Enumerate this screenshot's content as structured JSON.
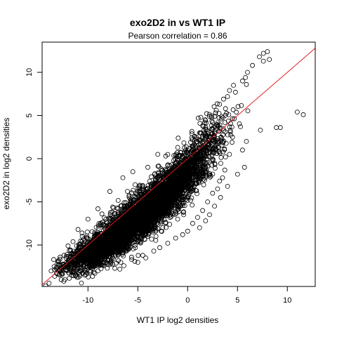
{
  "chart_data": {
    "type": "scatter",
    "title": "exo2D2 in vs WT1 IP",
    "subtitle": "Pearson correlation =  0.86",
    "xlabel": "WT1 IP log2 densities",
    "ylabel": "exo2D2 in log2 densities",
    "xlim": [
      -14.6,
      12.8
    ],
    "ylim": [
      -14.8,
      13.5
    ],
    "xticks": [
      -10,
      -5,
      0,
      5,
      10
    ],
    "xtick_labels": [
      "-10",
      "-5",
      "0",
      "5",
      "10"
    ],
    "yticks": [
      -10,
      -5,
      0,
      5,
      10
    ],
    "ytick_labels": [
      "-10",
      "-5",
      "0",
      "5",
      "10"
    ],
    "grid": false,
    "point_color": "#000000",
    "line_color": "#e31a1c",
    "reference_line": {
      "slope": 1,
      "intercept": 0
    },
    "points": [
      [
        11.0,
        5.4
      ],
      [
        11.6,
        5.1
      ],
      [
        8.9,
        3.6
      ],
      [
        9.3,
        3.6
      ],
      [
        7.3,
        3.3
      ],
      [
        5.9,
        2.0
      ],
      [
        7.6,
        12.2
      ],
      [
        8.0,
        12.4
      ],
      [
        7.2,
        11.8
      ],
      [
        7.6,
        11.3
      ],
      [
        8.2,
        11.5
      ],
      [
        6.5,
        10.8
      ],
      [
        6.0,
        10.0
      ],
      [
        5.8,
        9.4
      ],
      [
        5.5,
        9.0
      ],
      [
        5.9,
        8.6
      ],
      [
        4.6,
        8.5
      ],
      [
        4.2,
        7.9
      ],
      [
        4.0,
        7.2
      ],
      [
        4.8,
        7.7
      ],
      [
        3.6,
        6.9
      ],
      [
        3.2,
        6.3
      ],
      [
        3.8,
        5.8
      ],
      [
        2.8,
        5.3
      ],
      [
        2.2,
        4.9
      ],
      [
        1.8,
        4.4
      ],
      [
        1.5,
        3.8
      ],
      [
        2.4,
        3.4
      ],
      [
        1.2,
        3.0
      ],
      [
        0.7,
        2.6
      ],
      [
        0.3,
        1.9
      ],
      [
        5.3,
        3.7
      ],
      [
        4.5,
        2.5
      ],
      [
        5.5,
        1.0
      ],
      [
        3.8,
        0.2
      ],
      [
        4.2,
        0.5
      ],
      [
        5.7,
        -1.0
      ],
      [
        5.0,
        -1.8
      ],
      [
        3.5,
        -2.2
      ],
      [
        3.2,
        -2.6
      ],
      [
        4.0,
        -3.2
      ],
      [
        3.0,
        -3.5
      ],
      [
        2.5,
        -4.0
      ],
      [
        3.3,
        -4.5
      ],
      [
        2.0,
        -5.0
      ],
      [
        2.7,
        -5.5
      ],
      [
        1.5,
        -6.0
      ],
      [
        2.2,
        -6.5
      ],
      [
        1.0,
        -6.8
      ],
      [
        1.8,
        -7.2
      ],
      [
        0.5,
        -7.5
      ],
      [
        1.2,
        -8.0
      ],
      [
        0.0,
        -8.4
      ],
      [
        -0.5,
        -8.8
      ],
      [
        -1.2,
        -9.2
      ],
      [
        -2.0,
        -9.8
      ],
      [
        -2.8,
        -10.3
      ],
      [
        -3.4,
        -10.7
      ],
      [
        -4.5,
        -11.2
      ],
      [
        -5.3,
        -11.9
      ],
      [
        -6.4,
        -12.4
      ],
      [
        -7.3,
        -12.7
      ],
      [
        -9.0,
        -13.0
      ],
      [
        -10.3,
        -13.5
      ],
      [
        -11.5,
        -13.0
      ],
      [
        -12.4,
        -12.5
      ],
      [
        -13.1,
        -12.2
      ],
      [
        -13.7,
        -13.0
      ],
      [
        -12.8,
        -12.9
      ],
      [
        -11.0,
        -11.4
      ],
      [
        -10.2,
        -10.6
      ],
      [
        -9.6,
        -9.8
      ],
      [
        -9.2,
        -9.0
      ],
      [
        -10.6,
        -8.6
      ],
      [
        -11.0,
        -8.2
      ],
      [
        -8.7,
        -7.7
      ],
      [
        -8.2,
        -7.0
      ],
      [
        -8.6,
        -6.4
      ],
      [
        -7.6,
        -6.2
      ],
      [
        -7.0,
        -5.8
      ],
      [
        -6.2,
        -5.1
      ],
      [
        -5.8,
        -4.6
      ],
      [
        -5.2,
        -4.0
      ],
      [
        -4.5,
        -3.4
      ],
      [
        -3.8,
        -2.6
      ],
      [
        -3.2,
        -2.0
      ],
      [
        -2.6,
        -1.4
      ],
      [
        -2.0,
        -0.8
      ],
      [
        -1.4,
        -0.2
      ],
      [
        -0.8,
        0.4
      ],
      [
        -0.2,
        1.0
      ],
      [
        0.5,
        1.5
      ],
      [
        1.2,
        2.2
      ],
      [
        1.8,
        2.8
      ],
      [
        -4.0,
        -1.0
      ],
      [
        -3.0,
        0.5
      ],
      [
        -2.2,
        0.3
      ],
      [
        -1.0,
        1.3
      ],
      [
        -6.5,
        -2.2
      ],
      [
        -5.5,
        -1.5
      ],
      [
        -7.8,
        -3.8
      ],
      [
        -9.0,
        -5.8
      ],
      [
        -10.0,
        -7.0
      ],
      [
        -11.5,
        -9.6
      ],
      [
        -12.0,
        -10.1
      ],
      [
        -12.8,
        -11.4
      ],
      [
        -4.0,
        -9.0
      ],
      [
        -3.2,
        -8.4
      ],
      [
        -2.5,
        -8.0
      ],
      [
        -1.8,
        -7.6
      ],
      [
        -1.0,
        -7.0
      ],
      [
        -0.4,
        -6.5
      ],
      [
        -6.0,
        -10.5
      ],
      [
        -7.0,
        -11.2
      ],
      [
        -8.0,
        -11.8
      ],
      [
        -5.0,
        -12.0
      ],
      [
        -4.2,
        -11.5
      ],
      [
        -6.8,
        -12.8
      ],
      [
        -8.6,
        -12.3
      ],
      [
        -9.5,
        -11.5
      ],
      [
        -8.8,
        -10.2
      ]
    ],
    "clusters": [
      {
        "cx": -4.5,
        "cy": -6.5,
        "sx": 2.3,
        "sy": 2.3,
        "rho": 0.82,
        "n": 2600
      },
      {
        "cx": -8.0,
        "cy": -9.7,
        "sx": 1.6,
        "sy": 1.5,
        "rho": 0.78,
        "n": 1200
      },
      {
        "cx": -1.0,
        "cy": -2.5,
        "sx": 1.5,
        "sy": 1.9,
        "rho": 0.75,
        "n": 900
      },
      {
        "cx": 1.5,
        "cy": 0.8,
        "sx": 1.3,
        "sy": 1.8,
        "rho": 0.6,
        "n": 220
      },
      {
        "cx": -10.8,
        "cy": -11.3,
        "sx": 1.3,
        "sy": 1.1,
        "rho": 0.75,
        "n": 240
      },
      {
        "cx": 2.8,
        "cy": 3.5,
        "sx": 1.1,
        "sy": 1.6,
        "rho": 0.55,
        "n": 70
      }
    ]
  }
}
